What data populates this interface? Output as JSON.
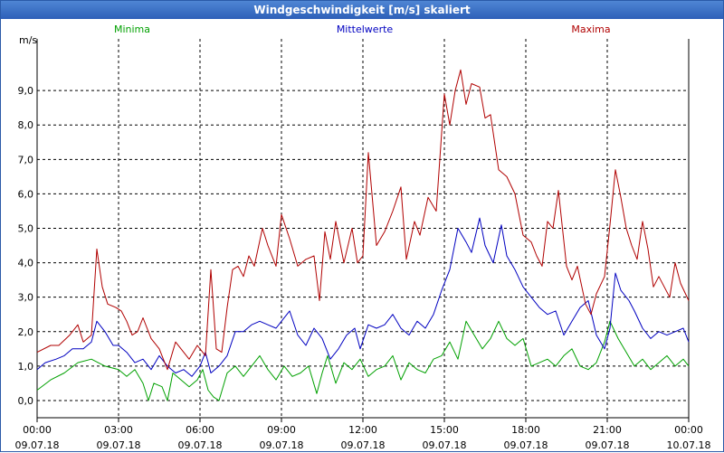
{
  "window": {
    "title": "Windgeschwindigkeit [m/s] skaliert"
  },
  "chart_data": {
    "type": "line",
    "title": "Windgeschwindigkeit [m/s] skaliert",
    "ylabel": "m/s",
    "xlabel": "",
    "ylim": [
      -0.5,
      10.5
    ],
    "xlim": [
      0,
      24
    ],
    "grid": true,
    "y_ticks": [
      "0,0",
      "1,0",
      "2,0",
      "3,0",
      "4,0",
      "5,0",
      "6,0",
      "7,0",
      "8,0",
      "9,0"
    ],
    "x_ticks": [
      {
        "time": "00:00",
        "date": "09.07.18"
      },
      {
        "time": "03:00",
        "date": "09.07.18"
      },
      {
        "time": "06:00",
        "date": "09.07.18"
      },
      {
        "time": "09:00",
        "date": "09.07.18"
      },
      {
        "time": "12:00",
        "date": "09.07.18"
      },
      {
        "time": "15:00",
        "date": "09.07.18"
      },
      {
        "time": "18:00",
        "date": "09.07.18"
      },
      {
        "time": "21:00",
        "date": "09.07.18"
      },
      {
        "time": "00:00",
        "date": "10.07.18"
      }
    ],
    "series": [
      {
        "name": "Minima",
        "color": "#00a000",
        "points": [
          [
            0,
            0.3
          ],
          [
            0.5,
            0.6
          ],
          [
            1,
            0.8
          ],
          [
            1.5,
            1.1
          ],
          [
            2,
            1.2
          ],
          [
            2.5,
            1.0
          ],
          [
            3,
            0.9
          ],
          [
            3.3,
            0.7
          ],
          [
            3.6,
            0.9
          ],
          [
            3.9,
            0.5
          ],
          [
            4.1,
            0.0
          ],
          [
            4.3,
            0.5
          ],
          [
            4.6,
            0.4
          ],
          [
            4.8,
            0.0
          ],
          [
            5,
            0.8
          ],
          [
            5.3,
            0.6
          ],
          [
            5.6,
            0.4
          ],
          [
            5.9,
            0.6
          ],
          [
            6.1,
            0.9
          ],
          [
            6.3,
            0.3
          ],
          [
            6.5,
            0.1
          ],
          [
            6.7,
            0.0
          ],
          [
            7,
            0.8
          ],
          [
            7.3,
            1.0
          ],
          [
            7.6,
            0.7
          ],
          [
            7.9,
            1.0
          ],
          [
            8.2,
            1.3
          ],
          [
            8.5,
            0.9
          ],
          [
            8.8,
            0.6
          ],
          [
            9.1,
            1.0
          ],
          [
            9.4,
            0.7
          ],
          [
            9.7,
            0.8
          ],
          [
            10,
            1.0
          ],
          [
            10.3,
            0.2
          ],
          [
            10.5,
            0.8
          ],
          [
            10.7,
            1.3
          ],
          [
            11,
            0.5
          ],
          [
            11.3,
            1.1
          ],
          [
            11.6,
            0.9
          ],
          [
            11.9,
            1.2
          ],
          [
            12.2,
            0.7
          ],
          [
            12.5,
            0.9
          ],
          [
            12.8,
            1.0
          ],
          [
            13.1,
            1.3
          ],
          [
            13.4,
            0.6
          ],
          [
            13.7,
            1.1
          ],
          [
            14,
            0.9
          ],
          [
            14.3,
            0.8
          ],
          [
            14.6,
            1.2
          ],
          [
            14.9,
            1.3
          ],
          [
            15.2,
            1.7
          ],
          [
            15.5,
            1.2
          ],
          [
            15.8,
            2.3
          ],
          [
            16.1,
            1.9
          ],
          [
            16.4,
            1.5
          ],
          [
            16.7,
            1.8
          ],
          [
            17,
            2.3
          ],
          [
            17.3,
            1.8
          ],
          [
            17.6,
            1.6
          ],
          [
            17.9,
            1.8
          ],
          [
            18.2,
            1.0
          ],
          [
            18.5,
            1.1
          ],
          [
            18.8,
            1.2
          ],
          [
            19.1,
            1.0
          ],
          [
            19.4,
            1.3
          ],
          [
            19.7,
            1.5
          ],
          [
            20,
            1.0
          ],
          [
            20.3,
            0.9
          ],
          [
            20.6,
            1.1
          ],
          [
            20.9,
            1.7
          ],
          [
            21.1,
            2.3
          ],
          [
            21.4,
            1.8
          ],
          [
            21.7,
            1.4
          ],
          [
            22,
            1.0
          ],
          [
            22.3,
            1.2
          ],
          [
            22.6,
            0.9
          ],
          [
            22.9,
            1.1
          ],
          [
            23.2,
            1.3
          ],
          [
            23.5,
            1.0
          ],
          [
            23.8,
            1.2
          ],
          [
            24,
            1.0
          ]
        ]
      },
      {
        "name": "Mittelwerte",
        "color": "#0000c0",
        "points": [
          [
            0,
            0.9
          ],
          [
            0.3,
            1.1
          ],
          [
            0.7,
            1.2
          ],
          [
            1,
            1.3
          ],
          [
            1.3,
            1.5
          ],
          [
            1.7,
            1.5
          ],
          [
            2,
            1.7
          ],
          [
            2.2,
            2.3
          ],
          [
            2.5,
            2.0
          ],
          [
            2.8,
            1.6
          ],
          [
            3,
            1.6
          ],
          [
            3.3,
            1.4
          ],
          [
            3.6,
            1.1
          ],
          [
            3.9,
            1.2
          ],
          [
            4.2,
            0.9
          ],
          [
            4.5,
            1.3
          ],
          [
            4.8,
            1.0
          ],
          [
            5.1,
            0.8
          ],
          [
            5.4,
            0.9
          ],
          [
            5.7,
            0.7
          ],
          [
            6,
            1.0
          ],
          [
            6.2,
            1.4
          ],
          [
            6.4,
            0.8
          ],
          [
            6.7,
            1.0
          ],
          [
            7,
            1.3
          ],
          [
            7.3,
            2.0
          ],
          [
            7.6,
            2.0
          ],
          [
            7.9,
            2.2
          ],
          [
            8.2,
            2.3
          ],
          [
            8.5,
            2.2
          ],
          [
            8.8,
            2.1
          ],
          [
            9,
            2.3
          ],
          [
            9.3,
            2.6
          ],
          [
            9.6,
            1.9
          ],
          [
            9.9,
            1.6
          ],
          [
            10.2,
            2.1
          ],
          [
            10.5,
            1.8
          ],
          [
            10.8,
            1.2
          ],
          [
            11.1,
            1.5
          ],
          [
            11.4,
            1.9
          ],
          [
            11.7,
            2.1
          ],
          [
            11.9,
            1.5
          ],
          [
            12.2,
            2.2
          ],
          [
            12.5,
            2.1
          ],
          [
            12.8,
            2.2
          ],
          [
            13.1,
            2.5
          ],
          [
            13.4,
            2.1
          ],
          [
            13.7,
            1.9
          ],
          [
            14,
            2.3
          ],
          [
            14.3,
            2.1
          ],
          [
            14.6,
            2.5
          ],
          [
            14.9,
            3.2
          ],
          [
            15.2,
            3.8
          ],
          [
            15.5,
            5.0
          ],
          [
            15.8,
            4.6
          ],
          [
            16,
            4.3
          ],
          [
            16.3,
            5.3
          ],
          [
            16.5,
            4.5
          ],
          [
            16.8,
            4.0
          ],
          [
            17.1,
            5.1
          ],
          [
            17.3,
            4.2
          ],
          [
            17.6,
            3.8
          ],
          [
            17.9,
            3.3
          ],
          [
            18.2,
            3.0
          ],
          [
            18.5,
            2.7
          ],
          [
            18.8,
            2.5
          ],
          [
            19.1,
            2.6
          ],
          [
            19.4,
            1.9
          ],
          [
            19.7,
            2.3
          ],
          [
            20,
            2.7
          ],
          [
            20.3,
            2.9
          ],
          [
            20.6,
            1.9
          ],
          [
            20.9,
            1.5
          ],
          [
            21.1,
            2.1
          ],
          [
            21.3,
            3.7
          ],
          [
            21.5,
            3.2
          ],
          [
            21.8,
            2.9
          ],
          [
            22,
            2.6
          ],
          [
            22.3,
            2.1
          ],
          [
            22.6,
            1.8
          ],
          [
            22.9,
            2.0
          ],
          [
            23.2,
            1.9
          ],
          [
            23.5,
            2.0
          ],
          [
            23.8,
            2.1
          ],
          [
            24,
            1.7
          ]
        ]
      },
      {
        "name": "Maxima",
        "color": "#b00000",
        "points": [
          [
            0,
            1.4
          ],
          [
            0.5,
            1.6
          ],
          [
            0.8,
            1.6
          ],
          [
            1.2,
            1.9
          ],
          [
            1.5,
            2.2
          ],
          [
            1.7,
            1.7
          ],
          [
            2,
            1.9
          ],
          [
            2.2,
            4.4
          ],
          [
            2.4,
            3.3
          ],
          [
            2.6,
            2.8
          ],
          [
            2.9,
            2.7
          ],
          [
            3.1,
            2.6
          ],
          [
            3.3,
            2.3
          ],
          [
            3.5,
            1.9
          ],
          [
            3.7,
            2.0
          ],
          [
            3.9,
            2.4
          ],
          [
            4.2,
            1.8
          ],
          [
            4.5,
            1.5
          ],
          [
            4.8,
            0.9
          ],
          [
            5.1,
            1.7
          ],
          [
            5.3,
            1.5
          ],
          [
            5.6,
            1.2
          ],
          [
            5.9,
            1.6
          ],
          [
            6.2,
            1.3
          ],
          [
            6.4,
            3.8
          ],
          [
            6.6,
            1.5
          ],
          [
            6.8,
            1.4
          ],
          [
            7,
            2.7
          ],
          [
            7.2,
            3.8
          ],
          [
            7.4,
            3.9
          ],
          [
            7.6,
            3.6
          ],
          [
            7.8,
            4.2
          ],
          [
            8,
            3.9
          ],
          [
            8.3,
            5.0
          ],
          [
            8.5,
            4.5
          ],
          [
            8.8,
            3.9
          ],
          [
            9,
            5.4
          ],
          [
            9.3,
            4.7
          ],
          [
            9.6,
            3.9
          ],
          [
            9.9,
            4.1
          ],
          [
            10.2,
            4.2
          ],
          [
            10.4,
            2.9
          ],
          [
            10.6,
            4.9
          ],
          [
            10.8,
            4.1
          ],
          [
            11,
            5.2
          ],
          [
            11.3,
            4.0
          ],
          [
            11.6,
            5.0
          ],
          [
            11.8,
            4.0
          ],
          [
            12,
            4.2
          ],
          [
            12.2,
            7.2
          ],
          [
            12.5,
            4.5
          ],
          [
            12.8,
            4.9
          ],
          [
            13.1,
            5.5
          ],
          [
            13.4,
            6.2
          ],
          [
            13.6,
            4.1
          ],
          [
            13.9,
            5.2
          ],
          [
            14.1,
            4.8
          ],
          [
            14.4,
            5.9
          ],
          [
            14.7,
            5.5
          ],
          [
            15,
            8.9
          ],
          [
            15.2,
            8.0
          ],
          [
            15.4,
            9.0
          ],
          [
            15.6,
            9.6
          ],
          [
            15.8,
            8.6
          ],
          [
            16,
            9.2
          ],
          [
            16.3,
            9.1
          ],
          [
            16.5,
            8.2
          ],
          [
            16.7,
            8.3
          ],
          [
            17,
            6.7
          ],
          [
            17.3,
            6.5
          ],
          [
            17.6,
            6.0
          ],
          [
            17.9,
            4.8
          ],
          [
            18.2,
            4.6
          ],
          [
            18.4,
            4.2
          ],
          [
            18.6,
            3.9
          ],
          [
            18.8,
            5.2
          ],
          [
            19,
            5.0
          ],
          [
            19.2,
            6.1
          ],
          [
            19.5,
            3.9
          ],
          [
            19.7,
            3.5
          ],
          [
            19.9,
            3.9
          ],
          [
            20.2,
            2.8
          ],
          [
            20.4,
            2.5
          ],
          [
            20.6,
            3.1
          ],
          [
            20.9,
            3.6
          ],
          [
            21.1,
            5.1
          ],
          [
            21.3,
            6.7
          ],
          [
            21.5,
            5.9
          ],
          [
            21.7,
            5.0
          ],
          [
            21.9,
            4.5
          ],
          [
            22.1,
            4.1
          ],
          [
            22.3,
            5.2
          ],
          [
            22.5,
            4.4
          ],
          [
            22.7,
            3.3
          ],
          [
            22.9,
            3.6
          ],
          [
            23.1,
            3.3
          ],
          [
            23.3,
            3.0
          ],
          [
            23.5,
            4.0
          ],
          [
            23.7,
            3.4
          ],
          [
            24,
            2.9
          ]
        ]
      }
    ]
  }
}
